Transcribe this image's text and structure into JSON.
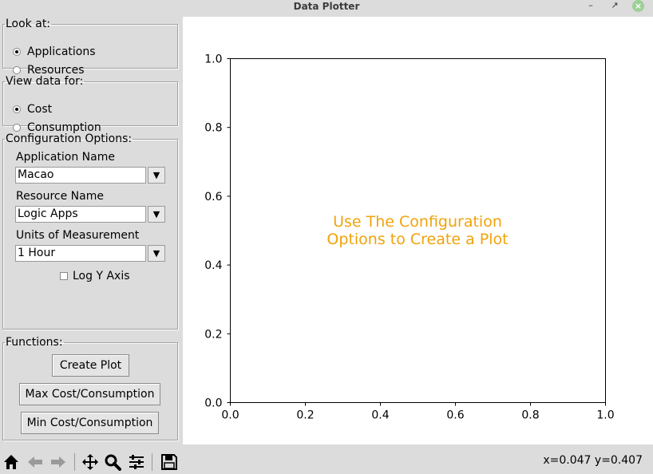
{
  "window": {
    "title": "Data Plotter"
  },
  "look_at": {
    "legend": "Look at:",
    "options": [
      {
        "label": "Applications",
        "checked": true
      },
      {
        "label": "Resources",
        "checked": false
      }
    ]
  },
  "view_data": {
    "legend": "View data for:",
    "options": [
      {
        "label": "Cost",
        "checked": true
      },
      {
        "label": "Consumption",
        "checked": false
      }
    ]
  },
  "config": {
    "legend": "Configuration Options:",
    "application_label": "Application Name",
    "application_value": "Macao",
    "resource_label": "Resource Name",
    "resource_value": "Logic Apps",
    "units_label": "Units of Measurement",
    "units_value": "1 Hour",
    "log_y_label": "Log Y Axis",
    "log_y_checked": false
  },
  "functions": {
    "legend": "Functions:",
    "create_plot": "Create Plot",
    "max": "Max Cost/Consumption",
    "min": "Min Cost/Consumption"
  },
  "plot": {
    "message_line1": "Use The Configuration",
    "message_line2": "Options to Create a Plot",
    "message_color": "#f0a30a"
  },
  "chart_data": {
    "type": "line",
    "series": [],
    "xlim": [
      0.0,
      1.0
    ],
    "ylim": [
      0.0,
      1.0
    ],
    "x_ticks": [
      "0.0",
      "0.2",
      "0.4",
      "0.6",
      "0.8",
      "1.0"
    ],
    "y_ticks": [
      "0.0",
      "0.2",
      "0.4",
      "0.6",
      "0.8",
      "1.0"
    ],
    "grid": false
  },
  "toolbar": {
    "icons": [
      "home-icon",
      "back-arrow-icon",
      "forward-arrow-icon",
      "pan-icon",
      "zoom-icon",
      "configure-subplots-icon",
      "save-icon"
    ],
    "coords": "x=0.047 y=0.407"
  }
}
